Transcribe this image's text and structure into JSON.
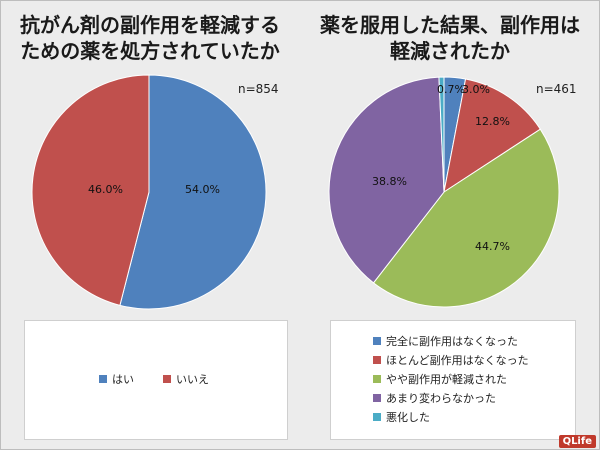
{
  "charts": {
    "left": {
      "title_line1": "抗がん剤の副作用を軽減する",
      "title_line2": "ための薬を処方されていたか",
      "n_label": "n=854"
    },
    "right": {
      "title_line1": "薬を服用した結果、副作用は",
      "title_line2": "軽減されたか",
      "n_label": "n=461"
    }
  },
  "brand": "QLife",
  "chart_data": [
    {
      "type": "pie",
      "title": "抗がん剤の副作用を軽減するための薬を処方されていたか",
      "sample_size": "n=854",
      "categories": [
        "はい",
        "いいえ"
      ],
      "values": [
        54.0,
        46.0
      ],
      "data_labels": [
        "54.0%",
        "46.0%"
      ],
      "colors": [
        "#4f81bd",
        "#c0504d"
      ],
      "legend_position": "bottom"
    },
    {
      "type": "pie",
      "title": "薬を服用した結果、副作用は軽減されたか",
      "sample_size": "n=461",
      "categories": [
        "完全に副作用はなくなった",
        "ほとんど副作用はなくなった",
        "やや副作用が軽減された",
        "あまり変わらなかった",
        "悪化した"
      ],
      "values": [
        3.0,
        12.8,
        44.7,
        38.8,
        0.7
      ],
      "data_labels": [
        "3.0%",
        "12.8%",
        "44.7%",
        "38.8%",
        "0.7%"
      ],
      "colors": [
        "#4f81bd",
        "#c0504d",
        "#9bbb59",
        "#8064a2",
        "#4bacc6"
      ],
      "legend_position": "bottom"
    }
  ]
}
